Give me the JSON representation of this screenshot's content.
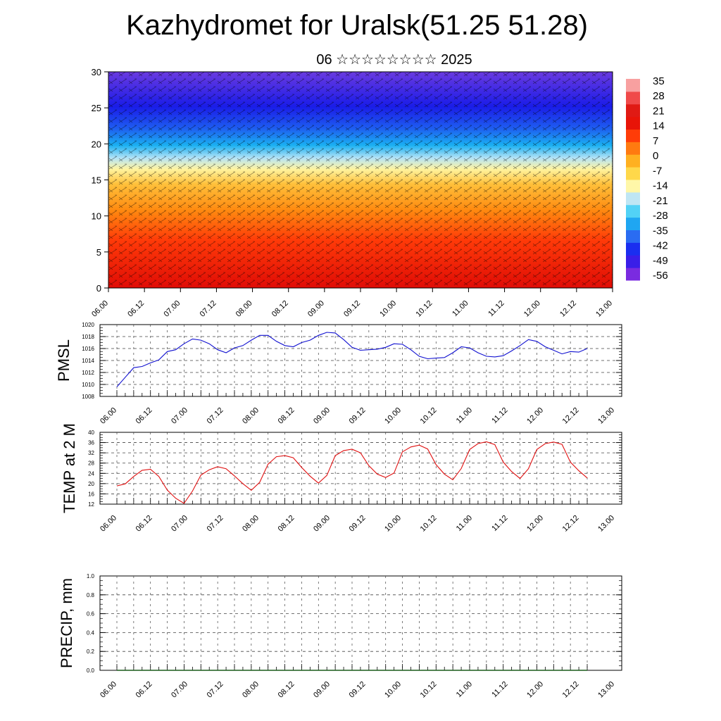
{
  "title": "Kazhydromet for Uralsk(51.25 51.28)",
  "subtitle": "06 ☆☆☆☆☆☆☆☆ 2025",
  "colors": {
    "pmsl_line": "#1010d0",
    "temp_line": "#e01010",
    "precip_line": "#1a5c1a",
    "colorbar": [
      "#7a2be0",
      "#3a1ee8",
      "#1a2ef0",
      "#2a6cf2",
      "#1fa6f2",
      "#52d2f6",
      "#bfe6f4",
      "#fff7a8",
      "#ffd84a",
      "#ffb020",
      "#ff7a10",
      "#ff3c08",
      "#e81408",
      "#e01a14",
      "#f04a4a",
      "#f8a0a0"
    ]
  },
  "chart_data": [
    {
      "type": "heatmap",
      "title": "",
      "ylabel": "",
      "ylim": [
        0,
        30
      ],
      "y_ticks": [
        "0",
        "5",
        "10",
        "15",
        "20",
        "25",
        "30"
      ],
      "x_ticks": [
        "06.00",
        "06.12",
        "07.00",
        "07.12",
        "08.00",
        "08.12",
        "09.00",
        "09.12",
        "10.00",
        "10.12",
        "11.00",
        "11.12",
        "12.00",
        "12.12",
        "13.00"
      ],
      "colorbar_labels": [
        "35",
        "28",
        "21",
        "14",
        "7",
        "0",
        "-7",
        "-14",
        "-21",
        "-28",
        "-35",
        "-42",
        "-49",
        "-56"
      ]
    },
    {
      "type": "line",
      "ylabel": "PMSL",
      "ylim": [
        1008,
        1020
      ],
      "y_ticks": [
        "1008",
        "1010",
        "1012",
        "1014",
        "1016",
        "1018",
        "1020"
      ],
      "x_ticks": [
        "06.00",
        "06.12",
        "07.00",
        "07.12",
        "08.00",
        "08.12",
        "09.00",
        "09.12",
        "10.00",
        "10.12",
        "11.00",
        "11.12",
        "12.00",
        "12.12",
        "13.00"
      ],
      "values": [
        1009.6,
        1011.2,
        1012.8,
        1013.0,
        1013.6,
        1014.1,
        1015.5,
        1015.8,
        1016.8,
        1017.6,
        1017.4,
        1016.8,
        1015.8,
        1015.3,
        1016.1,
        1016.5,
        1017.4,
        1018.2,
        1018.2,
        1017.2,
        1016.5,
        1016.3,
        1017.0,
        1017.4,
        1018.2,
        1018.7,
        1018.6,
        1017.5,
        1016.2,
        1015.7,
        1015.8,
        1015.9,
        1016.2,
        1016.8,
        1016.7,
        1015.8,
        1014.7,
        1014.3,
        1014.4,
        1014.5,
        1015.3,
        1016.3,
        1016.1,
        1015.3,
        1014.7,
        1014.6,
        1014.8,
        1015.6,
        1016.5,
        1017.5,
        1017.2,
        1016.3,
        1015.7,
        1015.1,
        1015.5,
        1015.4,
        1016.0
      ]
    },
    {
      "type": "line",
      "ylabel": "TEMP at 2 M",
      "ylim": [
        12,
        40
      ],
      "y_ticks": [
        "12",
        "16",
        "20",
        "24",
        "28",
        "32",
        "36",
        "40"
      ],
      "x_ticks": [
        "06.00",
        "06.12",
        "07.00",
        "07.12",
        "08.00",
        "08.12",
        "09.00",
        "09.12",
        "10.00",
        "10.12",
        "11.00",
        "11.12",
        "12.00",
        "12.12",
        "13.00"
      ],
      "values": [
        19.1,
        19.9,
        22.8,
        25.2,
        25.6,
        22.8,
        17.5,
        14.3,
        12.3,
        17.1,
        23.3,
        25.4,
        26.6,
        25.8,
        23.0,
        20.0,
        17.4,
        20.5,
        27.6,
        30.5,
        30.9,
        30.1,
        26.3,
        22.9,
        20.2,
        23.2,
        30.9,
        32.9,
        33.4,
        32.0,
        27.0,
        23.7,
        22.4,
        24.1,
        32.4,
        34.3,
        35.0,
        33.5,
        27.4,
        23.7,
        21.5,
        25.9,
        33.3,
        35.6,
        36.3,
        35.2,
        28.4,
        24.7,
        22.0,
        25.8,
        33.3,
        35.6,
        36.2,
        35.3,
        28.4,
        25.0,
        22.2
      ]
    },
    {
      "type": "line",
      "ylabel": "PRECIP, mm",
      "ylim": [
        0,
        1
      ],
      "y_ticks": [
        "0.0",
        "0.2",
        "0.4",
        "0.6",
        "0.8",
        "1.0"
      ],
      "x_ticks": [
        "06.00",
        "06.12",
        "07.00",
        "07.12",
        "08.00",
        "08.12",
        "09.00",
        "09.12",
        "10.00",
        "10.12",
        "11.00",
        "11.12",
        "12.00",
        "12.12",
        "13.00"
      ],
      "values": [
        0,
        0,
        0,
        0,
        0,
        0,
        0,
        0,
        0,
        0,
        0,
        0,
        0,
        0,
        0,
        0,
        0,
        0,
        0,
        0,
        0,
        0,
        0,
        0,
        0,
        0,
        0,
        0,
        0,
        0,
        0,
        0,
        0,
        0,
        0,
        0,
        0,
        0,
        0,
        0,
        0,
        0,
        0,
        0,
        0,
        0,
        0,
        0,
        0,
        0,
        0,
        0,
        0,
        0,
        0,
        0,
        0
      ]
    }
  ]
}
